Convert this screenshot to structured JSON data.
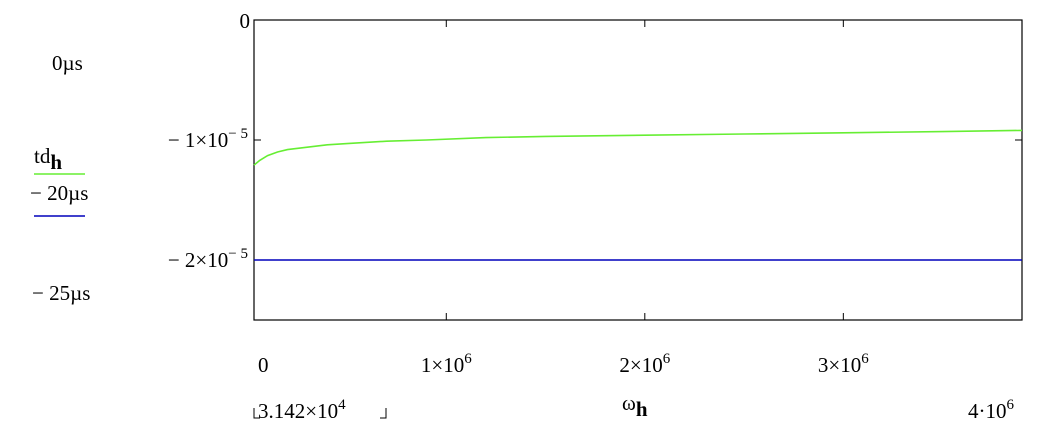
{
  "chart_data": {
    "type": "line",
    "xlabel": {
      "base": "ω",
      "subscript": "h"
    },
    "xlim": [
      31420,
      3900000
    ],
    "ylim": [
      -2.5e-05,
      0
    ],
    "x_ticks": [
      {
        "mantissa": "0",
        "exp": ""
      },
      {
        "mantissa": "1×10",
        "exp": "6"
      },
      {
        "mantissa": "2×10",
        "exp": "6"
      },
      {
        "mantissa": "3×10",
        "exp": "6"
      }
    ],
    "x_tick_values": [
      0,
      1000000,
      2000000,
      3000000
    ],
    "x_range_labels": {
      "min": {
        "mantissa": "3.142×10",
        "exp": "4"
      },
      "max": {
        "mantissa": "4·10",
        "exp": "6"
      }
    },
    "y_ticks": [
      {
        "value": 0,
        "mantissa": "0",
        "exp": ""
      },
      {
        "value": -1e-05,
        "mantissa": "− 1×10",
        "exp": "− 5"
      },
      {
        "value": -2e-05,
        "mantissa": "− 2×10",
        "exp": "− 5"
      }
    ],
    "y_range_labels": {
      "top": "0µs",
      "bottom": "− 25µs"
    },
    "legend": [
      {
        "base": "td",
        "subscript": "h",
        "color": "#66ee33"
      },
      {
        "base": "− 20µs",
        "subscript": "",
        "color": "#0000bb"
      }
    ],
    "series": [
      {
        "name": "td_h",
        "color": "#66ee33",
        "x": [
          31420,
          60000,
          100000,
          150000,
          200000,
          300000,
          400000,
          500000,
          700000,
          900000,
          1200000,
          1500000,
          2000000,
          2500000,
          3000000,
          3500000,
          3900000
        ],
        "values": [
          -1.21e-05,
          -1.17e-05,
          -1.13e-05,
          -1.1e-05,
          -1.08e-05,
          -1.06e-05,
          -1.04e-05,
          -1.03e-05,
          -1.01e-05,
          -1e-05,
          -9.8e-06,
          -9.7e-06,
          -9.6e-06,
          -9.5e-06,
          -9.4e-06,
          -9.3e-06,
          -9.2e-06
        ]
      },
      {
        "name": "− 20µs",
        "color": "#0000bb",
        "x": [
          31420,
          3900000
        ],
        "values": [
          -2e-05,
          -2e-05
        ]
      }
    ]
  }
}
